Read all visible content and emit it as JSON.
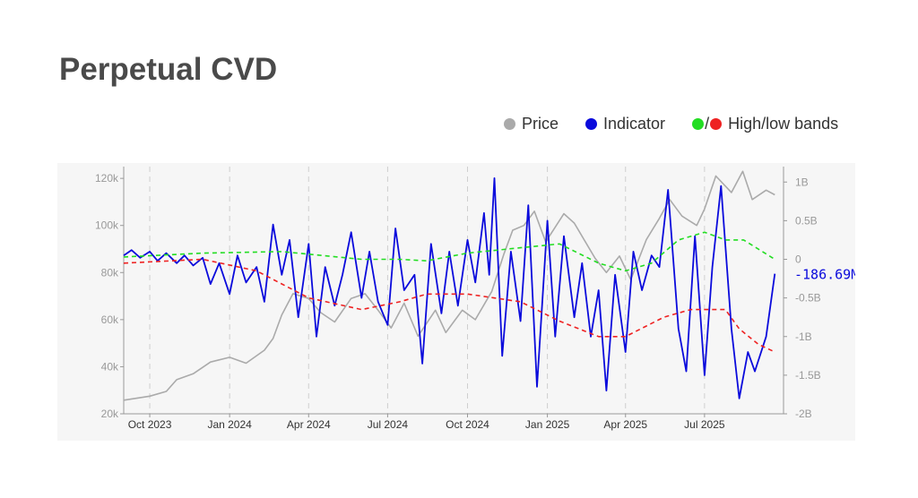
{
  "title": "Perpetual CVD",
  "legend": {
    "price": {
      "label": "Price",
      "color": "#aaaaaa"
    },
    "indicator": {
      "label": "Indicator",
      "color": "#0a0adc"
    },
    "bands": {
      "label": "High/low bands",
      "slash": "/",
      "high_color": "#22dd22",
      "low_color": "#ee2222"
    }
  },
  "chart_data": {
    "type": "line",
    "x_axis": {
      "range": [
        "2023-09-01",
        "2025-09-30"
      ],
      "ticks": [
        {
          "label": "Oct 2023",
          "date": "2023-10-01"
        },
        {
          "label": "Jan 2024",
          "date": "2024-01-01"
        },
        {
          "label": "Apr 2024",
          "date": "2024-04-01"
        },
        {
          "label": "Jul 2024",
          "date": "2024-07-01"
        },
        {
          "label": "Oct 2024",
          "date": "2024-10-01"
        },
        {
          "label": "Jan 2025",
          "date": "2025-01-01"
        },
        {
          "label": "Apr 2025",
          "date": "2025-04-01"
        },
        {
          "label": "Jul 2025",
          "date": "2025-07-01"
        }
      ],
      "gridlines": "dashed"
    },
    "y_left": {
      "label": "",
      "range": [
        20000,
        125000
      ],
      "ticks": [
        {
          "value": 20000,
          "label": "20k"
        },
        {
          "value": 40000,
          "label": "40k"
        },
        {
          "value": 60000,
          "label": "60k"
        },
        {
          "value": 80000,
          "label": "80k"
        },
        {
          "value": 100000,
          "label": "100k"
        },
        {
          "value": 120000,
          "label": "120k"
        }
      ]
    },
    "y_right": {
      "label": "",
      "range": [
        -2000000000,
        1200000000
      ],
      "ticks": [
        {
          "value": -2000000000,
          "label": "-2B"
        },
        {
          "value": -1500000000,
          "label": "-1.5B"
        },
        {
          "value": -1000000000,
          "label": "-1B"
        },
        {
          "value": -500000000,
          "label": "-0.5B"
        },
        {
          "value": 0,
          "label": "0"
        },
        {
          "value": 500000000,
          "label": "0.5B"
        },
        {
          "value": 1000000000,
          "label": "1B"
        }
      ]
    },
    "last_value_label": "-186.69M",
    "series": [
      {
        "name": "Price",
        "axis": "left",
        "color": "#aaaaaa",
        "points": [
          [
            "2023-09-01",
            25800
          ],
          [
            "2023-10-01",
            27500
          ],
          [
            "2023-10-20",
            29500
          ],
          [
            "2023-11-01",
            34500
          ],
          [
            "2023-11-20",
            37000
          ],
          [
            "2023-12-10",
            42000
          ],
          [
            "2024-01-01",
            44000
          ],
          [
            "2024-01-20",
            41500
          ],
          [
            "2024-02-10",
            47000
          ],
          [
            "2024-02-20",
            52000
          ],
          [
            "2024-03-01",
            62000
          ],
          [
            "2024-03-14",
            71000
          ],
          [
            "2024-04-01",
            69000
          ],
          [
            "2024-04-15",
            63000
          ],
          [
            "2024-05-01",
            59000
          ],
          [
            "2024-05-20",
            69000
          ],
          [
            "2024-06-05",
            71000
          ],
          [
            "2024-06-20",
            64000
          ],
          [
            "2024-07-05",
            56500
          ],
          [
            "2024-07-20",
            67000
          ],
          [
            "2024-08-05",
            53000
          ],
          [
            "2024-08-25",
            64000
          ],
          [
            "2024-09-06",
            54500
          ],
          [
            "2024-09-25",
            64000
          ],
          [
            "2024-10-10",
            60000
          ],
          [
            "2024-10-29",
            72000
          ],
          [
            "2024-11-12",
            88000
          ],
          [
            "2024-11-22",
            98000
          ],
          [
            "2024-12-05",
            100000
          ],
          [
            "2024-12-17",
            106000
          ],
          [
            "2024-12-30",
            93000
          ],
          [
            "2025-01-20",
            105000
          ],
          [
            "2025-02-01",
            101000
          ],
          [
            "2025-02-25",
            86000
          ],
          [
            "2025-03-10",
            80000
          ],
          [
            "2025-03-25",
            87000
          ],
          [
            "2025-04-07",
            77000
          ],
          [
            "2025-04-25",
            94000
          ],
          [
            "2025-05-10",
            103000
          ],
          [
            "2025-05-22",
            111000
          ],
          [
            "2025-06-05",
            104000
          ],
          [
            "2025-06-22",
            100000
          ],
          [
            "2025-07-01",
            107000
          ],
          [
            "2025-07-14",
            121000
          ],
          [
            "2025-08-01",
            114000
          ],
          [
            "2025-08-14",
            123000
          ],
          [
            "2025-08-25",
            111000
          ],
          [
            "2025-09-10",
            115000
          ],
          [
            "2025-09-20",
            113000
          ]
        ]
      },
      {
        "name": "Indicator",
        "axis": "right",
        "color": "#0a0adc",
        "points": [
          [
            "2023-09-01",
            50000000.0
          ],
          [
            "2023-09-10",
            120000000.0
          ],
          [
            "2023-09-20",
            20000000.0
          ],
          [
            "2023-10-01",
            100000000.0
          ],
          [
            "2023-10-10",
            -20000000.0
          ],
          [
            "2023-10-20",
            80000000.0
          ],
          [
            "2023-11-01",
            -50000000.0
          ],
          [
            "2023-11-10",
            50000000.0
          ],
          [
            "2023-11-20",
            -80000000.0
          ],
          [
            "2023-12-01",
            20000000.0
          ],
          [
            "2023-12-10",
            -320000000.0
          ],
          [
            "2023-12-20",
            -50000000.0
          ],
          [
            "2024-01-01",
            -450000000.0
          ],
          [
            "2024-01-10",
            50000000.0
          ],
          [
            "2024-01-20",
            -300000000.0
          ],
          [
            "2024-02-01",
            -100000000.0
          ],
          [
            "2024-02-10",
            -550000000.0
          ],
          [
            "2024-02-20",
            450000000.0
          ],
          [
            "2024-03-01",
            -200000000.0
          ],
          [
            "2024-03-10",
            250000000.0
          ],
          [
            "2024-03-20",
            -750000000.0
          ],
          [
            "2024-04-01",
            200000000.0
          ],
          [
            "2024-04-10",
            -1000000000.0
          ],
          [
            "2024-04-20",
            -100000000.0
          ],
          [
            "2024-05-01",
            -600000000.0
          ],
          [
            "2024-05-10",
            -200000000.0
          ],
          [
            "2024-05-20",
            350000000.0
          ],
          [
            "2024-06-01",
            -500000000.0
          ],
          [
            "2024-06-10",
            100000000.0
          ],
          [
            "2024-06-20",
            -550000000.0
          ],
          [
            "2024-07-01",
            -850000000.0
          ],
          [
            "2024-07-10",
            400000000.0
          ],
          [
            "2024-07-20",
            -400000000.0
          ],
          [
            "2024-08-01",
            -200000000.0
          ],
          [
            "2024-08-10",
            -1350000000.0
          ],
          [
            "2024-08-20",
            200000000.0
          ],
          [
            "2024-09-01",
            -700000000.0
          ],
          [
            "2024-09-10",
            100000000.0
          ],
          [
            "2024-09-20",
            -600000000.0
          ],
          [
            "2024-10-01",
            250000000.0
          ],
          [
            "2024-10-10",
            -300000000.0
          ],
          [
            "2024-10-20",
            600000000.0
          ],
          [
            "2024-10-26",
            -200000000.0
          ],
          [
            "2024-11-01",
            1050000000.0
          ],
          [
            "2024-11-10",
            -1250000000.0
          ],
          [
            "2024-11-20",
            100000000.0
          ],
          [
            "2024-12-01",
            -800000000.0
          ],
          [
            "2024-12-10",
            700000000.0
          ],
          [
            "2024-12-20",
            -1650000000.0
          ],
          [
            "2025-01-01",
            500000000.0
          ],
          [
            "2025-01-10",
            -1000000000.0
          ],
          [
            "2025-01-20",
            300000000.0
          ],
          [
            "2025-02-01",
            -750000000.0
          ],
          [
            "2025-02-10",
            -50000000.0
          ],
          [
            "2025-02-20",
            -1000000000.0
          ],
          [
            "2025-03-01",
            -400000000.0
          ],
          [
            "2025-03-10",
            -1700000000.0
          ],
          [
            "2025-03-20",
            -200000000.0
          ],
          [
            "2025-04-01",
            -1200000000.0
          ],
          [
            "2025-04-10",
            100000000.0
          ],
          [
            "2025-04-20",
            -400000000.0
          ],
          [
            "2025-05-01",
            50000000.0
          ],
          [
            "2025-05-10",
            -100000000.0
          ],
          [
            "2025-05-20",
            900000000.0
          ],
          [
            "2025-06-01",
            -900000000.0
          ],
          [
            "2025-06-10",
            -1450000000.0
          ],
          [
            "2025-06-20",
            300000000.0
          ],
          [
            "2025-07-01",
            -1500000000.0
          ],
          [
            "2025-07-10",
            -100000000.0
          ],
          [
            "2025-07-20",
            950000000.0
          ],
          [
            "2025-08-01",
            -900000000.0
          ],
          [
            "2025-08-10",
            -1800000000.0
          ],
          [
            "2025-08-20",
            -1200000000.0
          ],
          [
            "2025-08-28",
            -1450000000.0
          ],
          [
            "2025-09-10",
            -1000000000.0
          ],
          [
            "2025-09-20",
            -186690000.0
          ]
        ]
      },
      {
        "name": "High band",
        "axis": "right",
        "color": "#22dd22",
        "style": "dashed",
        "points": [
          [
            "2023-09-01",
            30000000.0
          ],
          [
            "2023-12-01",
            80000000.0
          ],
          [
            "2024-03-01",
            100000000.0
          ],
          [
            "2024-06-01",
            0.0
          ],
          [
            "2024-07-15",
            0.0
          ],
          [
            "2024-08-15",
            -20000000.0
          ],
          [
            "2024-10-01",
            80000000.0
          ],
          [
            "2024-12-01",
            150000000.0
          ],
          [
            "2025-01-15",
            200000000.0
          ],
          [
            "2025-03-01",
            -50000000.0
          ],
          [
            "2025-04-01",
            -150000000.0
          ],
          [
            "2025-05-01",
            -50000000.0
          ],
          [
            "2025-06-01",
            250000000.0
          ],
          [
            "2025-07-01",
            350000000.0
          ],
          [
            "2025-07-25",
            250000000.0
          ],
          [
            "2025-08-15",
            250000000.0
          ],
          [
            "2025-09-20",
            0.0
          ]
        ]
      },
      {
        "name": "Low band",
        "axis": "right",
        "color": "#ee2222",
        "style": "dashed",
        "points": [
          [
            "2023-09-01",
            -50000000.0
          ],
          [
            "2023-12-01",
            0.0
          ],
          [
            "2024-02-01",
            -150000000.0
          ],
          [
            "2024-04-01",
            -500000000.0
          ],
          [
            "2024-06-01",
            -650000000.0
          ],
          [
            "2024-07-15",
            -550000000.0
          ],
          [
            "2024-08-15",
            -450000000.0
          ],
          [
            "2024-10-01",
            -450000000.0
          ],
          [
            "2024-12-01",
            -550000000.0
          ],
          [
            "2025-01-15",
            -800000000.0
          ],
          [
            "2025-03-01",
            -1000000000.0
          ],
          [
            "2025-04-01",
            -1000000000.0
          ],
          [
            "2025-05-15",
            -750000000.0
          ],
          [
            "2025-06-15",
            -650000000.0
          ],
          [
            "2025-07-25",
            -650000000.0
          ],
          [
            "2025-08-10",
            -900000000.0
          ],
          [
            "2025-09-01",
            -1100000000.0
          ],
          [
            "2025-09-20",
            -1200000000.0
          ]
        ]
      }
    ]
  }
}
